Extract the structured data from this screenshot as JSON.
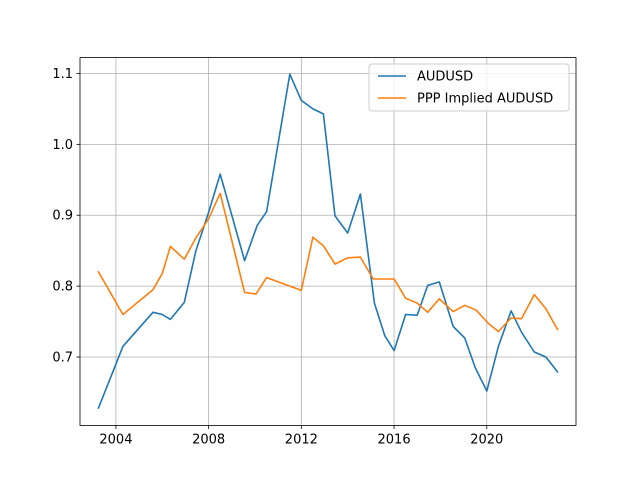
{
  "chart_data": {
    "type": "line",
    "title": "",
    "xlabel": "",
    "ylabel": "",
    "xlim": [
      2002.45,
      2023.85
    ],
    "ylim": [
      0.6035,
      1.1224
    ],
    "xticks": [
      2004,
      2008,
      2012,
      2016,
      2020
    ],
    "yticks": [
      0.7,
      0.8,
      0.9,
      1.0,
      1.1
    ],
    "ytick_labels": [
      "0.7",
      "0.8",
      "0.9",
      "1.0",
      "1.1"
    ],
    "grid": true,
    "legend_position": "top-right",
    "series": [
      {
        "name": "AUDUSD",
        "color": "#1f77b4",
        "points": [
          [
            2003.25,
            0.628
          ],
          [
            2004.3,
            0.715
          ],
          [
            2005.6,
            0.763
          ],
          [
            2006.0,
            0.76
          ],
          [
            2006.35,
            0.753
          ],
          [
            2006.95,
            0.777
          ],
          [
            2007.45,
            0.85
          ],
          [
            2008.0,
            0.904
          ],
          [
            2008.5,
            0.958
          ],
          [
            2009.55,
            0.836
          ],
          [
            2010.1,
            0.886
          ],
          [
            2010.5,
            0.905
          ],
          [
            2011.5,
            1.099
          ],
          [
            2012.0,
            1.062
          ],
          [
            2012.5,
            1.05
          ],
          [
            2012.95,
            1.043
          ],
          [
            2013.45,
            0.899
          ],
          [
            2014.0,
            0.875
          ],
          [
            2014.55,
            0.93
          ],
          [
            2015.15,
            0.776
          ],
          [
            2015.6,
            0.73
          ],
          [
            2016.0,
            0.709
          ],
          [
            2016.5,
            0.76
          ],
          [
            2017.0,
            0.759
          ],
          [
            2017.45,
            0.801
          ],
          [
            2017.95,
            0.806
          ],
          [
            2018.55,
            0.743
          ],
          [
            2019.05,
            0.727
          ],
          [
            2019.5,
            0.685
          ],
          [
            2020.0,
            0.652
          ],
          [
            2020.5,
            0.715
          ],
          [
            2021.05,
            0.765
          ],
          [
            2021.5,
            0.735
          ],
          [
            2022.05,
            0.707
          ],
          [
            2022.55,
            0.7
          ],
          [
            2023.05,
            0.679
          ]
        ]
      },
      {
        "name": "PPP Implied AUDUSD",
        "color": "#ff7f0e",
        "points": [
          [
            2003.25,
            0.82
          ],
          [
            2004.3,
            0.76
          ],
          [
            2005.6,
            0.795
          ],
          [
            2006.0,
            0.818
          ],
          [
            2006.35,
            0.856
          ],
          [
            2006.95,
            0.838
          ],
          [
            2007.45,
            0.868
          ],
          [
            2008.0,
            0.895
          ],
          [
            2008.5,
            0.931
          ],
          [
            2009.55,
            0.791
          ],
          [
            2010.05,
            0.789
          ],
          [
            2010.5,
            0.812
          ],
          [
            2011.5,
            0.8
          ],
          [
            2012.0,
            0.794
          ],
          [
            2012.5,
            0.869
          ],
          [
            2012.95,
            0.857
          ],
          [
            2013.45,
            0.831
          ],
          [
            2014.0,
            0.84
          ],
          [
            2014.55,
            0.841
          ],
          [
            2015.1,
            0.81
          ],
          [
            2016.0,
            0.81
          ],
          [
            2016.5,
            0.783
          ],
          [
            2017.0,
            0.776
          ],
          [
            2017.45,
            0.763
          ],
          [
            2017.95,
            0.782
          ],
          [
            2018.55,
            0.764
          ],
          [
            2019.05,
            0.773
          ],
          [
            2019.55,
            0.766
          ],
          [
            2020.05,
            0.748
          ],
          [
            2020.5,
            0.736
          ],
          [
            2021.05,
            0.755
          ],
          [
            2021.5,
            0.754
          ],
          [
            2022.05,
            0.788
          ],
          [
            2022.55,
            0.768
          ],
          [
            2023.05,
            0.739
          ]
        ]
      }
    ]
  }
}
